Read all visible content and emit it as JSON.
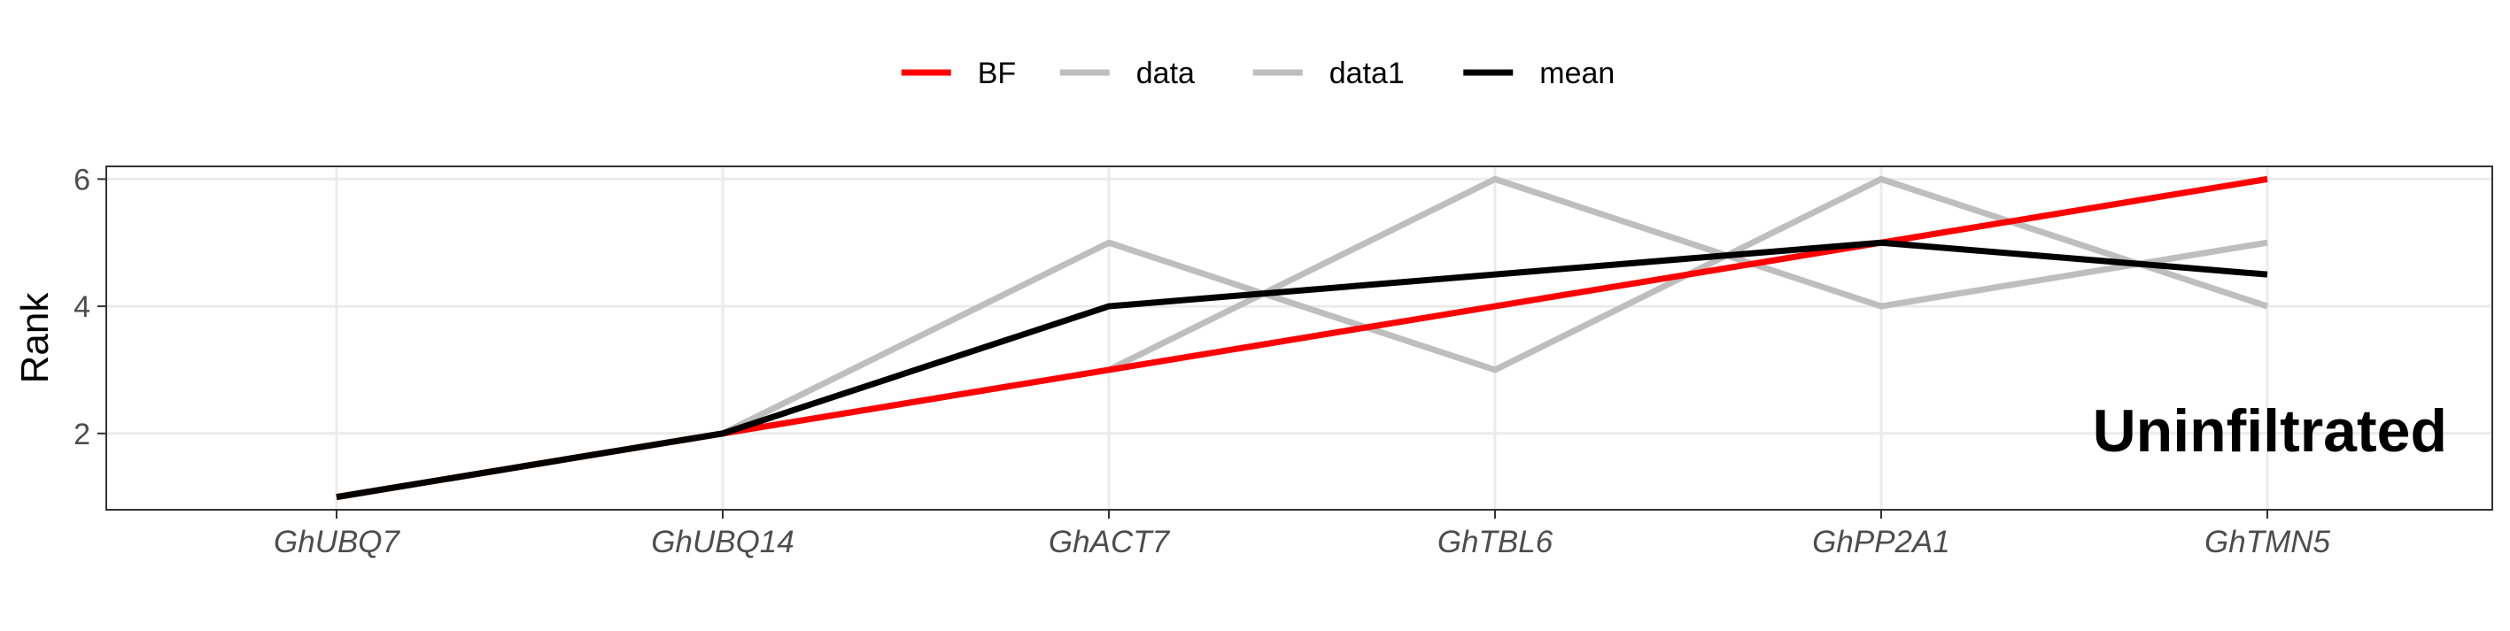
{
  "chart_data": {
    "type": "line",
    "title": "",
    "xlabel": "",
    "ylabel": "Rank",
    "annotation": "Uninfiltrated",
    "categories": [
      "GhUBQ7",
      "GhUBQ14",
      "GhACT7",
      "GhTBL6",
      "GhPP2A1",
      "GhTMN5"
    ],
    "yticks": [
      2,
      4,
      6
    ],
    "ylim": [
      0.8,
      6.2
    ],
    "grid": true,
    "legend_position": "top",
    "series": [
      {
        "name": "BF",
        "color": "#ff0000",
        "values": [
          1,
          2,
          3,
          4,
          5,
          6
        ]
      },
      {
        "name": "data",
        "color": "#bebebe",
        "values": [
          1,
          2,
          5,
          3,
          6,
          4
        ]
      },
      {
        "name": "data1",
        "color": "#bebebe",
        "values": [
          1,
          2,
          3,
          6,
          4,
          5
        ]
      },
      {
        "name": "mean",
        "color": "#000000",
        "values": [
          1,
          2,
          4,
          4.5,
          5,
          4.5
        ]
      }
    ]
  }
}
